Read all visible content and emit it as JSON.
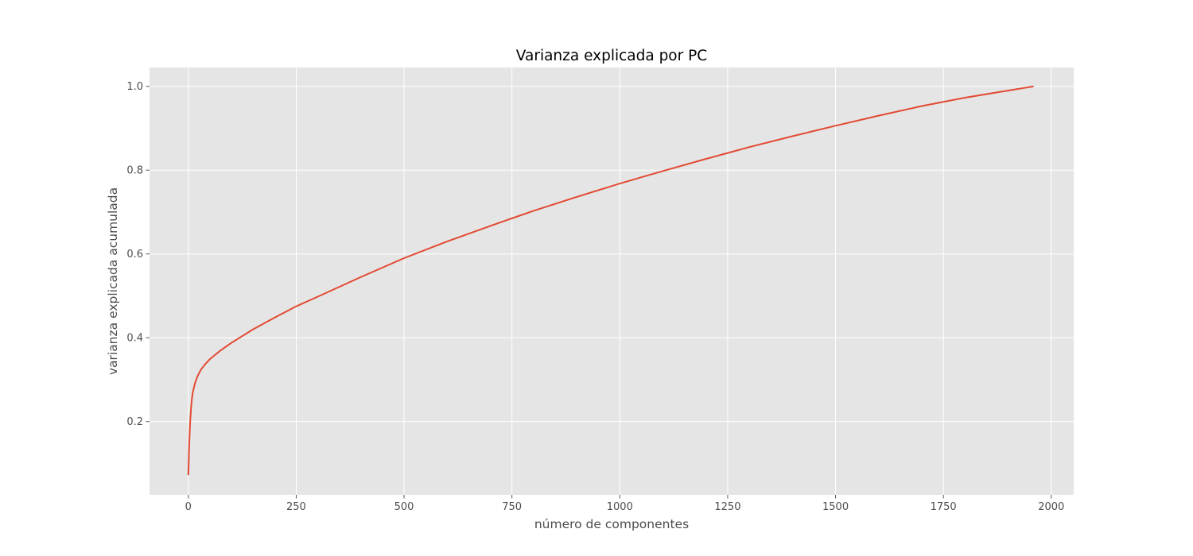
{
  "chart_data": {
    "type": "line",
    "title": "Varianza explicada por PC",
    "xlabel": "número de componentes",
    "ylabel": "varianza explicada acumulada",
    "xlim": [
      -90,
      2052
    ],
    "ylim": [
      0.025,
      1.045
    ],
    "xticks": [
      0,
      250,
      500,
      750,
      1000,
      1250,
      1500,
      1750,
      2000
    ],
    "yticks": [
      0.2,
      0.4,
      0.6,
      0.8,
      1.0
    ],
    "xtick_labels": [
      "0",
      "250",
      "500",
      "750",
      "1000",
      "1250",
      "1500",
      "1750",
      "2000"
    ],
    "ytick_labels": [
      "0.2",
      "0.4",
      "0.6",
      "0.8",
      "1.0"
    ],
    "grid": true,
    "background_color": "#e5e5e5",
    "grid_color": "#ffffff",
    "series": [
      {
        "color": "#e24a33",
        "x": [
          0,
          2,
          4,
          6,
          8,
          10,
          15,
          20,
          25,
          30,
          40,
          50,
          75,
          100,
          150,
          200,
          250,
          300,
          400,
          500,
          600,
          700,
          750,
          800,
          900,
          1000,
          1100,
          1200,
          1250,
          1300,
          1400,
          1500,
          1600,
          1700,
          1750,
          1800,
          1900,
          1959
        ],
        "y": [
          0.072,
          0.145,
          0.195,
          0.228,
          0.252,
          0.268,
          0.29,
          0.305,
          0.316,
          0.325,
          0.338,
          0.349,
          0.37,
          0.388,
          0.42,
          0.448,
          0.475,
          0.498,
          0.545,
          0.59,
          0.63,
          0.667,
          0.685,
          0.703,
          0.736,
          0.768,
          0.798,
          0.827,
          0.841,
          0.855,
          0.881,
          0.906,
          0.93,
          0.953,
          0.963,
          0.973,
          0.99,
          1.0
        ]
      }
    ]
  }
}
